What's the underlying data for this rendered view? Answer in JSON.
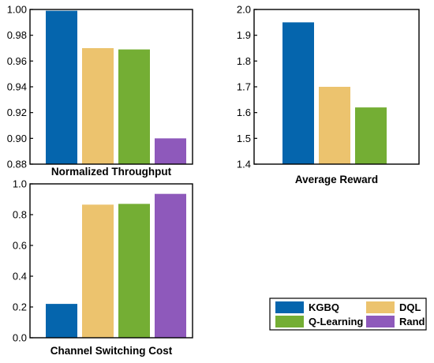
{
  "chart_data": [
    {
      "type": "bar",
      "title": "Normalized Throughput",
      "categories": [
        "KGBQ",
        "DQL",
        "Q-Learning",
        "Rand"
      ],
      "values": [
        0.999,
        0.97,
        0.969,
        0.9
      ],
      "ylim": [
        0.88,
        1.0
      ],
      "yticks": [
        "0.88",
        "0.90",
        "0.92",
        "0.94",
        "0.96",
        "0.98",
        "1.00"
      ],
      "xlabel": "",
      "ylabel": "",
      "grid": false
    },
    {
      "type": "bar",
      "title": "Average Reward",
      "categories": [
        "KGBQ",
        "DQL",
        "Q-Learning"
      ],
      "values": [
        1.95,
        1.7,
        1.62
      ],
      "ylim": [
        1.4,
        2.0
      ],
      "yticks": [
        "1.4",
        "1.5",
        "1.6",
        "1.7",
        "1.8",
        "1.9",
        "2.0"
      ],
      "xlabel": "",
      "ylabel": "",
      "grid": false
    },
    {
      "type": "bar",
      "title": "Channel Switching Cost",
      "categories": [
        "KGBQ",
        "DQL",
        "Q-Learning",
        "Rand"
      ],
      "values": [
        0.22,
        0.865,
        0.87,
        0.935
      ],
      "ylim": [
        0.0,
        1.0
      ],
      "yticks": [
        "0.0",
        "0.2",
        "0.4",
        "0.6",
        "0.8",
        "1.0"
      ],
      "xlabel": "",
      "ylabel": "",
      "grid": false
    }
  ],
  "legend": {
    "placement": "bottom-right",
    "entries": [
      {
        "label": "KGBQ",
        "color": "#0565ad"
      },
      {
        "label": "DQL",
        "color": "#ecc36e"
      },
      {
        "label": "Q-Learning",
        "color": "#74ae34"
      },
      {
        "label": "Rand",
        "color": "#8e59bb"
      }
    ]
  }
}
